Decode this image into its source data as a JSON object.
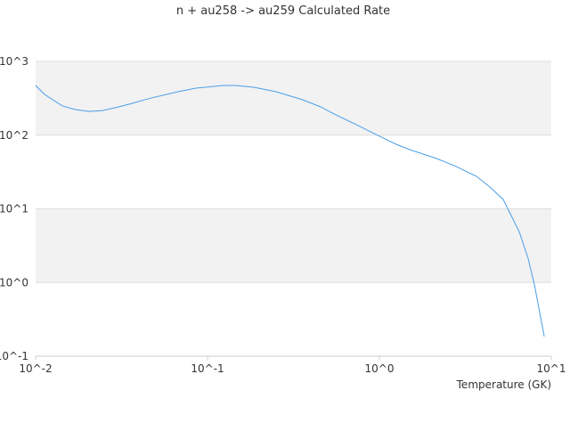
{
  "chart_data": {
    "type": "line",
    "title": "n + au258 -> au259 Calculated Rate",
    "xlabel": "Temperature (GK)",
    "xscale": "log",
    "yscale": "log",
    "xlim": [
      0.01,
      10
    ],
    "ylim": [
      0.1,
      1000
    ],
    "xticks": [
      {
        "value": 0.01,
        "label": "10^-2"
      },
      {
        "value": 0.1,
        "label": "10^-1"
      },
      {
        "value": 1,
        "label": "10^0"
      },
      {
        "value": 10,
        "label": "10^1"
      }
    ],
    "yticks": [
      {
        "value": 0.1,
        "label": "10^-1"
      },
      {
        "value": 1,
        "label": "10^0"
      },
      {
        "value": 10,
        "label": "10^1"
      },
      {
        "value": 100,
        "label": "10^2"
      },
      {
        "value": 1000,
        "label": "10^3"
      }
    ],
    "grid": true,
    "series": [
      {
        "color": "#4a9ee8",
        "x": [
          0.01,
          0.01127,
          0.0143,
          0.0171,
          0.0205,
          0.0245,
          0.0292,
          0.035,
          0.0472,
          0.0675,
          0.0857,
          0.1225,
          0.1465,
          0.186,
          0.25,
          0.358,
          0.455,
          0.544,
          0.733,
          1,
          1.25,
          1.5,
          2.15,
          2.72,
          3.67,
          4.39,
          5.25,
          6.5,
          7.33,
          7.98,
          9.1
        ],
        "values": [
          472,
          357,
          249,
          222,
          210,
          216,
          236,
          263,
          320,
          388,
          434,
          472,
          472,
          446,
          388,
          302,
          242,
          194,
          139,
          96.6,
          75.2,
          63.6,
          48.2,
          38.6,
          27.6,
          19.8,
          13.4,
          4.92,
          2.13,
          0.927,
          0.185
        ]
      }
    ]
  }
}
